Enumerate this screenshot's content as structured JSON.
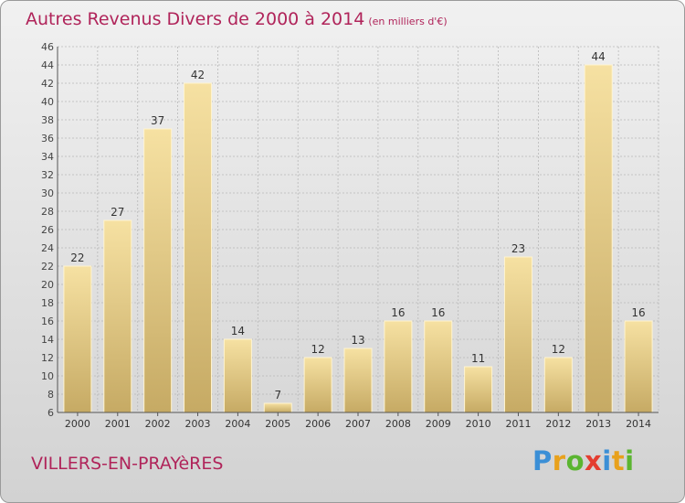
{
  "header": {
    "title": "Autres Revenus Divers de 2000 à 2014",
    "subtitle": "(en milliers d'€)"
  },
  "footer": {
    "city": "VILLERS-EN-PRAYèRES",
    "logo_letters": [
      "P",
      "r",
      "o",
      "x",
      "i",
      "t",
      "i"
    ],
    "logo_colors": [
      "#3b8fd6",
      "#e8a11c",
      "#5bb531",
      "#e43d30",
      "#3b8fd6",
      "#e8a11c",
      "#5bb531"
    ]
  },
  "colors": {
    "title": "#b0245a",
    "bar_light": "#f6e1a2",
    "bar_dark": "#c6aa64",
    "grid": "#b8b8b8"
  },
  "chart_data": {
    "type": "bar",
    "categories": [
      "2000",
      "2001",
      "2002",
      "2003",
      "2004",
      "2005",
      "2006",
      "2007",
      "2008",
      "2009",
      "2010",
      "2011",
      "2012",
      "2013",
      "2014"
    ],
    "values": [
      22,
      27,
      37,
      42,
      14,
      7,
      12,
      13,
      16,
      16,
      11,
      23,
      12,
      44,
      16
    ],
    "title": "Autres Revenus Divers de 2000 à 2014",
    "subtitle": "(en milliers d'€)",
    "ylim": [
      6,
      46
    ],
    "yticks": [
      6,
      8,
      10,
      12,
      14,
      16,
      18,
      20,
      22,
      24,
      26,
      28,
      30,
      32,
      34,
      36,
      38,
      40,
      42,
      44,
      46
    ],
    "grid": true,
    "legend": "none"
  }
}
